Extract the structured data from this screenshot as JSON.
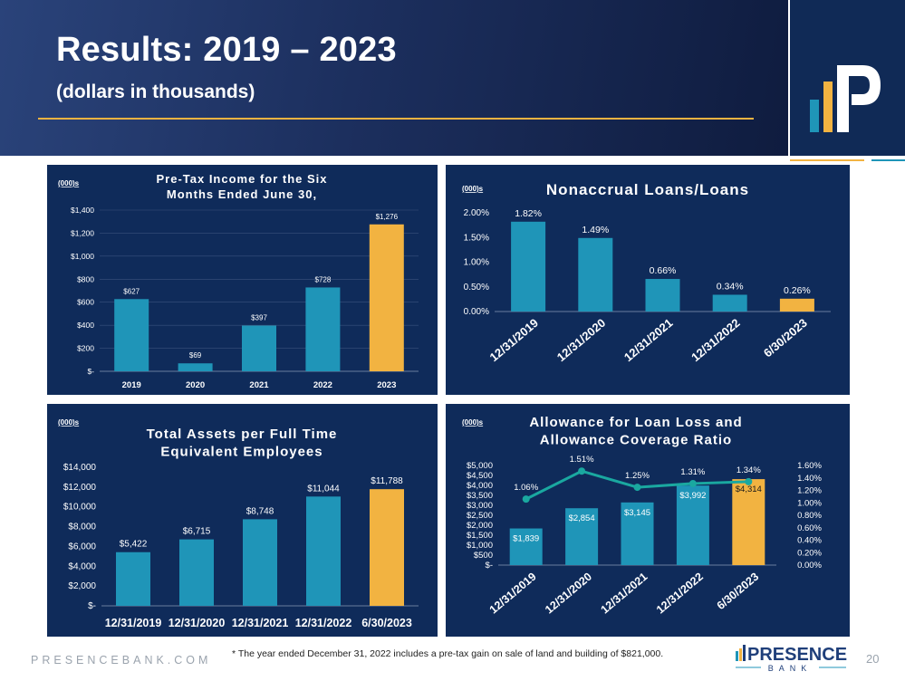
{
  "header": {
    "title": "Results: 2019 – 2023",
    "subtitle": "(dollars in thousands)"
  },
  "colors": {
    "teal": "#1f95b8",
    "gold": "#f2b341",
    "panel_bg": "#0f2b5a",
    "header_bg": "#1c2f5e",
    "line": "#1aa8a0"
  },
  "footer": {
    "website": "PRESENCEBANK.COM",
    "footnote": "* The year ended December 31, 2022 includes a pre-tax gain on sale of land and building of $821,000.",
    "page_number": "20",
    "logo_word": "PRESENCE",
    "logo_sub": "BANK"
  },
  "chart_data": [
    {
      "type": "bar",
      "unit_label": "(000)s",
      "title": "Pre-Tax Income for the Six Months Ended June 30,",
      "categories": [
        "2019",
        "2020",
        "2021",
        "2022",
        "2023"
      ],
      "values": [
        627,
        69,
        397,
        728,
        1276
      ],
      "data_labels": [
        "$627",
        "$69",
        "$397",
        "$728",
        "$1,276"
      ],
      "highlight_index": 4,
      "ylim": [
        0,
        1400
      ],
      "yticks": [
        0,
        200,
        400,
        600,
        800,
        1000,
        1200,
        1400
      ],
      "ytick_labels": [
        "$-",
        "$200",
        "$400",
        "$600",
        "$800",
        "$1,000",
        "$1,200",
        "$1,400"
      ],
      "grid": true
    },
    {
      "type": "bar",
      "unit_label": "(000)s",
      "title": "Nonaccrual Loans/Loans",
      "categories": [
        "12/31/2019",
        "12/31/2020",
        "12/31/2021",
        "12/31/2022",
        "6/30/2023"
      ],
      "values": [
        1.82,
        1.49,
        0.66,
        0.34,
        0.26
      ],
      "data_labels": [
        "1.82%",
        "1.49%",
        "0.66%",
        "0.34%",
        "0.26%"
      ],
      "highlight_index": 4,
      "ylim": [
        0,
        2.0
      ],
      "yticks": [
        0,
        0.5,
        1.0,
        1.5,
        2.0
      ],
      "ytick_labels": [
        "0.00%",
        "0.50%",
        "1.00%",
        "1.50%",
        "2.00%"
      ],
      "grid": false
    },
    {
      "type": "bar",
      "unit_label": "(000)s",
      "title": "Total Assets per Full Time Equivalent Employees",
      "categories": [
        "12/31/2019",
        "12/31/2020",
        "12/31/2021",
        "12/31/2022",
        "6/30/2023"
      ],
      "values": [
        5422,
        6715,
        8748,
        11044,
        11788
      ],
      "data_labels": [
        "$5,422",
        "$6,715",
        "$8,748",
        "$11,044",
        "$11,788"
      ],
      "highlight_index": 4,
      "ylim": [
        0,
        14000
      ],
      "yticks": [
        0,
        2000,
        4000,
        6000,
        8000,
        10000,
        12000,
        14000
      ],
      "ytick_labels": [
        "$-",
        "$2,000",
        "$4,000",
        "$6,000",
        "$8,000",
        "$10,000",
        "$12,000",
        "$14,000"
      ],
      "grid": false
    },
    {
      "type": "bar",
      "unit_label": "(000)s",
      "title": "Allowance for Loan Loss and Allowance Coverage Ratio",
      "categories": [
        "12/31/2019",
        "12/31/2020",
        "12/31/2021",
        "12/31/2022",
        "6/30/2023"
      ],
      "values": [
        1839,
        2854,
        3145,
        3992,
        4314
      ],
      "data_labels": [
        "$1,839",
        "$2,854",
        "$3,145",
        "$3,992",
        "$4,314"
      ],
      "highlight_index": 4,
      "ylim": [
        0,
        5000
      ],
      "yticks": [
        0,
        500,
        1000,
        1500,
        2000,
        2500,
        3000,
        3500,
        4000,
        4500,
        5000
      ],
      "ytick_labels": [
        "$-",
        "$500",
        "$1,000",
        "$1,500",
        "$2,000",
        "$2,500",
        "$3,000",
        "$3,500",
        "$4,000",
        "$4,500",
        "$5,000"
      ],
      "line_values": [
        1.06,
        1.51,
        1.25,
        1.31,
        1.34
      ],
      "line_labels": [
        "1.06%",
        "1.51%",
        "1.25%",
        "1.31%",
        "1.34%"
      ],
      "y2lim": [
        0,
        1.6
      ],
      "y2ticks": [
        0,
        0.2,
        0.4,
        0.6,
        0.8,
        1.0,
        1.2,
        1.4,
        1.6
      ],
      "y2tick_labels": [
        "0.00%",
        "0.20%",
        "0.40%",
        "0.60%",
        "0.80%",
        "1.00%",
        "1.20%",
        "1.40%",
        "1.60%"
      ],
      "grid": false
    }
  ]
}
